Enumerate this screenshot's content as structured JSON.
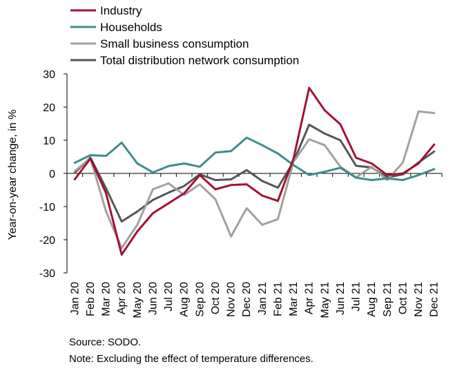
{
  "chart_data": {
    "type": "line",
    "title": "",
    "xlabel": "",
    "ylabel": "Year-on-year change, in %",
    "ylim": [
      -30,
      30
    ],
    "yticks": [
      -30,
      -20,
      -10,
      0,
      10,
      20,
      30
    ],
    "grid": false,
    "legend_position": "top-left",
    "categories": [
      "Jan 20",
      "Feb 20",
      "Mar 20",
      "Apr 20",
      "May 20",
      "Jun 20",
      "Jul 20",
      "Aug 20",
      "Sep 20",
      "Oct 20",
      "Nov 20",
      "Dec 20",
      "Jan 21",
      "Feb 21",
      "Mar 21",
      "Apr 21",
      "May 21",
      "Jun 21",
      "Jul 21",
      "Aug 21",
      "Sep 21",
      "Oct 21",
      "Nov 21",
      "Dec 21"
    ],
    "series": [
      {
        "name": "Industry",
        "color": "#a3112f",
        "values": [
          -1.8,
          4.5,
          -6.0,
          -24.5,
          -17.5,
          -12.0,
          -9.0,
          -6.0,
          -0.5,
          -4.8,
          -3.5,
          -3.3,
          -6.7,
          -8.3,
          4.5,
          25.8,
          19.0,
          14.8,
          4.7,
          3.0,
          -0.5,
          0.0,
          3.0,
          8.7
        ]
      },
      {
        "name": "Households",
        "color": "#3c8c8c",
        "values": [
          3.2,
          5.5,
          5.3,
          9.3,
          3.0,
          0.3,
          2.2,
          3.0,
          2.0,
          6.3,
          6.7,
          10.8,
          8.5,
          6.0,
          2.5,
          -0.5,
          0.5,
          1.7,
          -1.3,
          -2.0,
          -1.5,
          -2.0,
          -0.5,
          1.3
        ]
      },
      {
        "name": "Small business consumption",
        "color": "#a0a0a0",
        "values": [
          0.7,
          4.6,
          -11.5,
          -22.5,
          -15.5,
          -4.8,
          -3.0,
          -6.5,
          -3.3,
          -7.8,
          -19.0,
          -10.5,
          -15.5,
          -13.8,
          3.5,
          10.3,
          8.5,
          2.0,
          -1.2,
          2.0,
          -2.0,
          3.3,
          18.7,
          18.2
        ]
      },
      {
        "name": "Total distribution network consumption",
        "color": "#555555",
        "values": [
          0.2,
          4.8,
          -4.5,
          -14.5,
          -11.5,
          -8.0,
          -5.8,
          -3.8,
          -0.3,
          -2.0,
          -1.8,
          1.0,
          -2.3,
          -4.3,
          3.5,
          14.7,
          12.0,
          10.0,
          2.3,
          1.8,
          -1.2,
          -0.3,
          3.3,
          6.6
        ]
      }
    ]
  },
  "footnotes": {
    "source": "Source: SODO.",
    "note": "Note: Excluding the effect of temperature differences."
  }
}
